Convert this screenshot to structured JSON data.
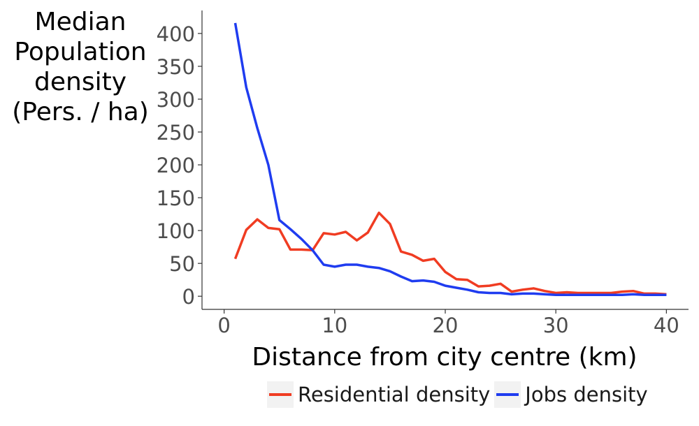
{
  "chart_data": {
    "type": "line",
    "ylabel_lines": [
      "Median",
      "Population",
      "density",
      "(Pers. / ha)"
    ],
    "xlabel": "Distance from city centre (km)",
    "xlim": [
      -2,
      42
    ],
    "ylim": [
      -20,
      435
    ],
    "xticks": [
      0,
      10,
      20,
      30,
      40
    ],
    "yticks": [
      0,
      50,
      100,
      150,
      200,
      250,
      300,
      350,
      400
    ],
    "grid": false,
    "legend_position": "bottom",
    "series": [
      {
        "name": "Residential density",
        "color": "#f03c22",
        "x": [
          1,
          2,
          3,
          4,
          5,
          6,
          7,
          8,
          9,
          10,
          11,
          12,
          13,
          14,
          15,
          16,
          17,
          18,
          19,
          20,
          21,
          22,
          23,
          24,
          25,
          26,
          27,
          28,
          29,
          30,
          31,
          32,
          33,
          34,
          35,
          36,
          37,
          38,
          39,
          40
        ],
        "values": [
          57,
          101,
          117,
          104,
          102,
          71,
          71,
          70,
          96,
          94,
          98,
          85,
          97,
          127,
          110,
          68,
          63,
          54,
          57,
          37,
          26,
          25,
          15,
          16,
          19,
          7,
          10,
          12,
          8,
          5,
          6,
          5,
          5,
          5,
          5,
          7,
          8,
          4,
          4,
          3
        ]
      },
      {
        "name": "Jobs density",
        "color": "#1f3cf0",
        "x": [
          1,
          2,
          3,
          4,
          5,
          6,
          7,
          8,
          9,
          10,
          11,
          12,
          13,
          14,
          15,
          16,
          17,
          18,
          19,
          20,
          21,
          22,
          23,
          24,
          25,
          26,
          27,
          28,
          29,
          30,
          31,
          32,
          33,
          34,
          35,
          36,
          37,
          38,
          39,
          40
        ],
        "values": [
          416,
          318,
          256,
          200,
          116,
          102,
          87,
          70,
          48,
          45,
          48,
          48,
          45,
          43,
          38,
          30,
          23,
          24,
          22,
          16,
          13,
          10,
          6,
          5,
          5,
          3,
          4,
          4,
          3,
          2,
          2,
          2,
          2,
          2,
          2,
          2,
          3,
          2,
          2,
          2
        ]
      }
    ]
  }
}
